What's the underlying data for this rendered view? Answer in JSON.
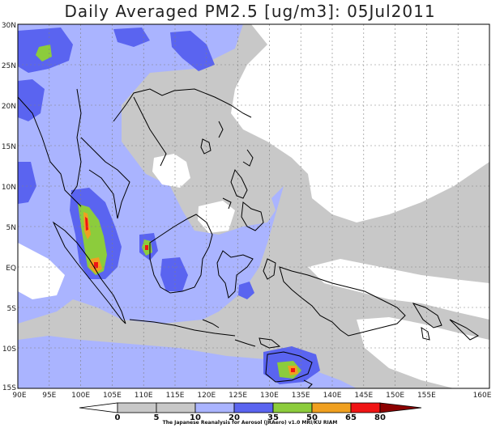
{
  "title": "Daily Averaged PM2.5 [ug/m3]: 05Jul2011",
  "axes": {
    "lat_labels": [
      "30N",
      "25N",
      "20N",
      "15N",
      "10N",
      "5N",
      "EQ",
      "5S",
      "10S",
      "15S"
    ],
    "lon_labels": [
      "90E",
      "95E",
      "100E",
      "105E",
      "110E",
      "115E",
      "120E",
      "125E",
      "130E",
      "135E",
      "140E",
      "145E",
      "150E",
      "155E",
      "160E"
    ]
  },
  "colorbar": {
    "ticks": [
      "0",
      "5",
      "10",
      "20",
      "35",
      "50",
      "65",
      "80"
    ],
    "colors": [
      "#ffffff",
      "#c8c8c8",
      "#aab4ff",
      "#5a64f0",
      "#8ccc3c",
      "#f0a020",
      "#f01414",
      "#8c0000"
    ]
  },
  "credit": "The Japanese Reanalysis for Aerosol (JRAero) v1.0 MRI/KU RIAM",
  "colors": {
    "coast": "#000000",
    "grid": "#808080",
    "frame": "#000000"
  }
}
